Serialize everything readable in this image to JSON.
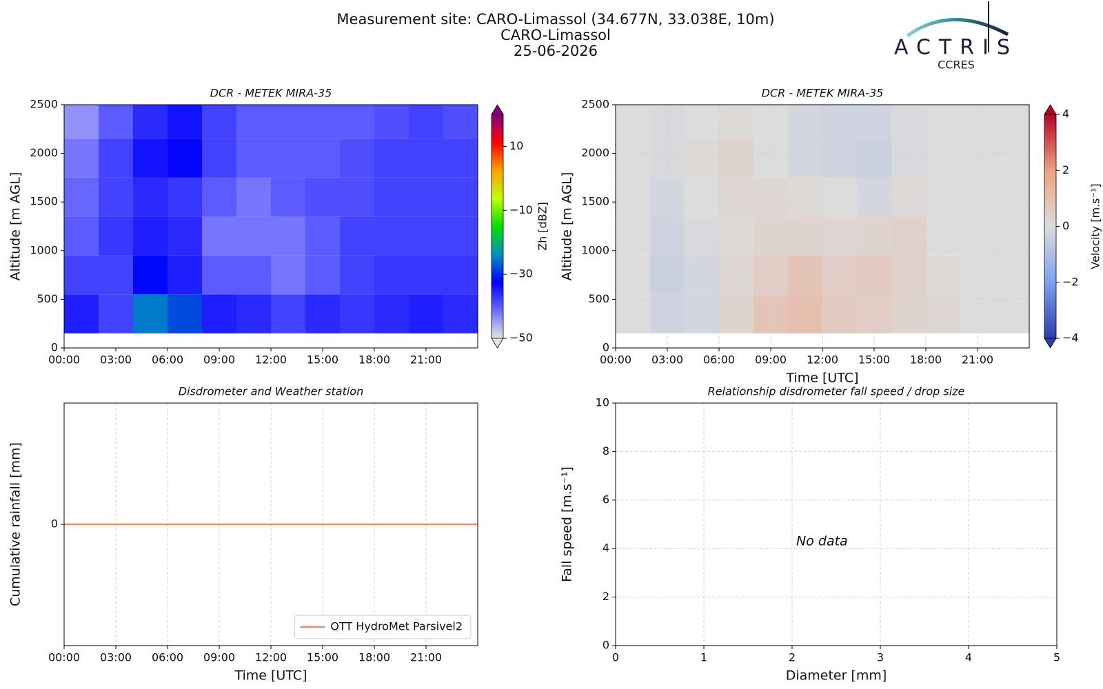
{
  "header": {
    "title_lines": [
      "Measurement site: CARO-Limassol (34.677N, 33.038E, 10m)",
      "CARO-Limassol",
      "25-06-2026"
    ],
    "logo": "ACTRIS",
    "logo_sub": "CCRES"
  },
  "chart_data": [
    {
      "type": "heatmap",
      "title": "DCR - METEK MIRA-35",
      "y_label": "Altitude [m AGL]",
      "xlim": [
        0,
        24
      ],
      "xticks": [
        {
          "value": 0,
          "label": "00:00"
        },
        {
          "value": 3,
          "label": "03:00"
        },
        {
          "value": 6,
          "label": "06:00"
        },
        {
          "value": 9,
          "label": "09:00"
        },
        {
          "value": 12,
          "label": "12:00"
        },
        {
          "value": 15,
          "label": "15:00"
        },
        {
          "value": 18,
          "label": "18:00"
        },
        {
          "value": 21,
          "label": "21:00"
        }
      ],
      "ylim": [
        0,
        2500
      ],
      "yticks": [
        0,
        500,
        1000,
        1500,
        2000,
        2500
      ],
      "x_edges": [
        0,
        2,
        4,
        6,
        8,
        10,
        12,
        14,
        16,
        18,
        20,
        22,
        24
      ],
      "y_edges": [
        150,
        550,
        950,
        1350,
        1750,
        2150,
        2500
      ],
      "z": [
        [
          -35,
          -38,
          -25,
          -28,
          -35,
          -36,
          -38,
          -36,
          -37,
          -36,
          -35,
          -36
        ],
        [
          -38,
          -38,
          -32,
          -35,
          -40,
          -40,
          -42,
          -40,
          -38,
          -37,
          -37,
          -37
        ],
        [
          -40,
          -37,
          -35,
          -36,
          -42,
          -42,
          -42,
          -40,
          -38,
          -38,
          -38,
          -38
        ],
        [
          -41,
          -38,
          -36,
          -37,
          -40,
          -42,
          -40,
          -39,
          -39,
          -38,
          -38,
          -38
        ],
        [
          -42,
          -38,
          -34,
          -33,
          -38,
          -40,
          -40,
          -40,
          -39,
          -38,
          -38,
          -38
        ],
        [
          -44,
          -40,
          -36,
          -34,
          -38,
          -40,
          -40,
          -40,
          -40,
          -39,
          -38,
          -39
        ]
      ],
      "clim": [
        -50,
        20
      ],
      "colormap": [
        "#e6e6e6",
        "#6a6aff",
        "#0000ff",
        "#0090c0",
        "#00e000",
        "#c0ff00",
        "#ffa000",
        "#ff0000",
        "#800080"
      ],
      "cbar_ticks": [
        {
          "value": -50,
          "label": "−50"
        },
        {
          "value": -30,
          "label": "−30"
        },
        {
          "value": -10,
          "label": "−10"
        },
        10
      ],
      "cbar_label": "Zh [dBZ]",
      "cbar_extend": "both"
    },
    {
      "type": "heatmap",
      "title": "DCR - METEK MIRA-35",
      "x_label": "Time [UTC]",
      "y_label": "Altitude [m AGL]",
      "xlim": [
        0,
        24
      ],
      "xticks": [
        {
          "value": 0,
          "label": "00:00"
        },
        {
          "value": 3,
          "label": "03:00"
        },
        {
          "value": 6,
          "label": "06:00"
        },
        {
          "value": 9,
          "label": "09:00"
        },
        {
          "value": 12,
          "label": "12:00"
        },
        {
          "value": 15,
          "label": "15:00"
        },
        {
          "value": 18,
          "label": "18:00"
        },
        {
          "value": 21,
          "label": "21:00"
        }
      ],
      "ylim": [
        0,
        2500
      ],
      "yticks": [
        0,
        500,
        1000,
        1500,
        2000,
        2500
      ],
      "grid": true,
      "x_edges": [
        0,
        2,
        4,
        6,
        8,
        10,
        12,
        14,
        16,
        18,
        20,
        22,
        24
      ],
      "y_edges": [
        150,
        550,
        950,
        1350,
        1750,
        2150,
        2500
      ],
      "z": [
        [
          0,
          -0.3,
          -0.2,
          0.3,
          0.8,
          1,
          0.6,
          0.5,
          0.3,
          0.2,
          0,
          0
        ],
        [
          0,
          -0.4,
          -0.2,
          0.2,
          0.5,
          0.8,
          0.5,
          0.6,
          0.4,
          0.1,
          0,
          0
        ],
        [
          0,
          -0.3,
          -0.1,
          0.1,
          0.3,
          0.3,
          0.2,
          0.3,
          0.4,
          0,
          0,
          0
        ],
        [
          0,
          -0.2,
          0,
          0.2,
          0.2,
          0.1,
          0,
          -0.2,
          0.1,
          0,
          0,
          0
        ],
        [
          0,
          -0.1,
          0.1,
          0.3,
          0,
          -0.2,
          -0.3,
          -0.4,
          -0.1,
          0,
          0,
          0
        ],
        [
          0,
          -0.1,
          0,
          0.1,
          0,
          -0.2,
          -0.3,
          -0.3,
          -0.1,
          0,
          0,
          0
        ]
      ],
      "clim": [
        -4,
        4
      ],
      "colormap": [
        "#2b3fb0",
        "#7ea0f0",
        "#dcdcdc",
        "#f0a080",
        "#b40426"
      ],
      "cbar_ticks": [
        {
          "value": -4,
          "label": "−4"
        },
        {
          "value": -2,
          "label": "−2"
        },
        0,
        2,
        4
      ],
      "cbar_label": "Velocity [m.s⁻¹]",
      "cbar_extend": "both"
    },
    {
      "type": "line",
      "title": "Disdrometer and Weather station",
      "x_label": "Time [UTC]",
      "y_label": "Cumulative rainfall [mm]",
      "xlim": [
        0,
        24
      ],
      "xticks": [
        {
          "value": 0,
          "label": "00:00"
        },
        {
          "value": 3,
          "label": "03:00"
        },
        {
          "value": 6,
          "label": "06:00"
        },
        {
          "value": 9,
          "label": "09:00"
        },
        {
          "value": 12,
          "label": "12:00"
        },
        {
          "value": 15,
          "label": "15:00"
        },
        {
          "value": 18,
          "label": "18:00"
        },
        {
          "value": 21,
          "label": "21:00"
        }
      ],
      "ylim": [
        -1,
        1
      ],
      "yticks": [
        0
      ],
      "grid": true,
      "legend": "lower right",
      "x": [
        0,
        24
      ],
      "series": [
        {
          "name": "OTT HydroMet Parsivel2",
          "color": "#ee8a5e",
          "values": [
            0,
            0
          ]
        }
      ]
    },
    {
      "type": "scatter",
      "title": "Relationship disdrometer fall speed / drop size",
      "x_label": "Diameter [mm]",
      "y_label": "Fall speed [m.s⁻¹]",
      "xlim": [
        0,
        5
      ],
      "xticks": [
        0,
        1,
        2,
        3,
        4,
        5
      ],
      "ylim": [
        0,
        10
      ],
      "yticks": [
        0,
        2,
        4,
        6,
        8,
        10
      ],
      "grid": true,
      "annotation": "No data"
    }
  ]
}
